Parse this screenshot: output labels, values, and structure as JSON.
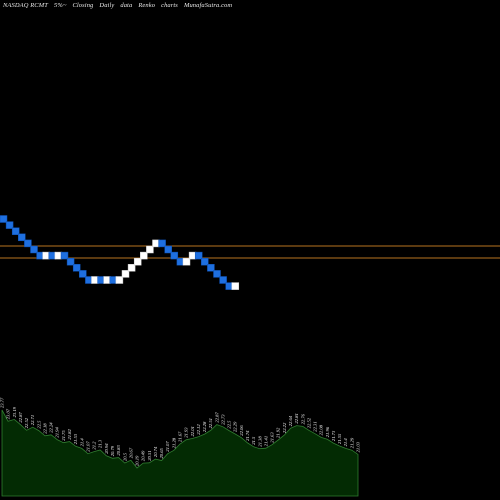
{
  "header": {
    "exchange_symbol": "NASDAQ RCMT",
    "change": "5%~",
    "price_type": "Closing",
    "period": "Daily",
    "data_word": "data",
    "chart_kind": "Renko",
    "charts_word": "charts",
    "site": "MunafaSutra.com"
  },
  "colors": {
    "background": "#000000",
    "up_brick": "#ffffff",
    "down_brick": "#1e6fe0",
    "level_line": "#b8731f",
    "volume_fill": "#032b03",
    "volume_line": "#2f7d2f"
  },
  "chart_data": {
    "type": "renko",
    "bricks": [
      "down",
      "down",
      "down",
      "down",
      "down",
      "down",
      "down",
      "up",
      "down",
      "up",
      "down",
      "down",
      "down",
      "down",
      "down",
      "up",
      "down",
      "up",
      "down",
      "up",
      "up",
      "up",
      "up",
      "up",
      "up",
      "up",
      "down",
      "down",
      "down",
      "down",
      "up",
      "up",
      "down",
      "down",
      "down",
      "down",
      "down",
      "down",
      "up"
    ],
    "level_lines": 2,
    "volume_labels": [
      "23.77",
      "23.07",
      "23.19",
      "22.87",
      "22.52",
      "22.71",
      "22.5",
      "22.18",
      "22.24",
      "21.94",
      "21.75",
      "21.82",
      "21.53",
      "21.4",
      "21.07",
      "21.2",
      "21.3",
      "20.94",
      "20.79",
      "20.83",
      "20.5",
      "20.67",
      "20.19",
      "20.49",
      "20.51",
      "20.74",
      "20.65",
      "21.07",
      "21.28",
      "21.67",
      "21.93",
      "22.01",
      "22.12",
      "22.28",
      "22.51",
      "22.87",
      "22.73",
      "22.5",
      "22.29",
      "22.06",
      "21.74",
      "21.5",
      "21.38",
      "21.41",
      "21.63",
      "21.92",
      "22.22",
      "22.64",
      "22.81",
      "22.76",
      "22.52",
      "22.31",
      "22.08",
      "21.96",
      "21.73",
      "21.55",
      "21.4",
      "21.29",
      "21.03"
    ]
  }
}
